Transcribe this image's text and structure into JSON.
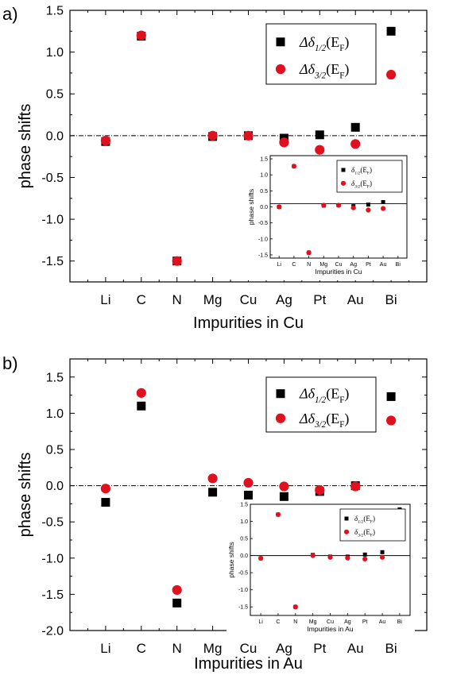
{
  "colors": {
    "series1": "#000000",
    "series2": "#e0101e",
    "zero_line": "#000000"
  },
  "chart_data": [
    {
      "panel_label": "a)",
      "type": "scatter",
      "categories": [
        "Li",
        "C",
        "N",
        "Mg",
        "Cu",
        "Ag",
        "Pt",
        "Au",
        "Bi"
      ],
      "xlabel": "Impurities in Cu",
      "ylabel": "phase shifts",
      "ylim": [
        -1.75,
        1.5
      ],
      "yticks": [
        "1.5",
        "1.0",
        "0.5",
        "0.0",
        "-0.5",
        "-1.0",
        "-1.5"
      ],
      "ytick_values": [
        1.5,
        1.0,
        0.5,
        0.0,
        -0.5,
        -1.0,
        -1.5
      ],
      "legend_position": "top-right",
      "series": [
        {
          "name_main": "Δδ",
          "name_sub": "1/2",
          "name_tail": "(E",
          "name_sub2": "F",
          "name_end": ")",
          "marker": "square",
          "color": "#000000",
          "values": [
            -0.07,
            1.19,
            -1.5,
            -0.01,
            0.0,
            -0.03,
            0.01,
            0.1,
            1.25
          ]
        },
        {
          "name_main": "Δδ",
          "name_sub": "3/2",
          "name_tail": "(E",
          "name_sub2": "F",
          "name_end": ")",
          "marker": "circle",
          "color": "#e0101e",
          "values": [
            -0.06,
            1.2,
            -1.5,
            0.0,
            0.0,
            -0.08,
            -0.17,
            -0.1,
            0.73
          ]
        }
      ],
      "inset": {
        "categories": [
          "Li",
          "C",
          "N",
          "Mg",
          "Cu",
          "Ag",
          "Pt",
          "Au",
          "Bi"
        ],
        "xlabel": "Impurities in Cu",
        "ylabel": "phase shifts",
        "ylim": [
          -1.6,
          1.6
        ],
        "yticks": [
          "1.5",
          "1.0",
          "0.5",
          "0.0",
          "-0.5",
          "-1.0",
          "-1.5"
        ],
        "ytick_values": [
          1.5,
          1.0,
          0.5,
          0.0,
          -0.5,
          -1.0,
          -1.5
        ],
        "zero_level": 0.1,
        "series": [
          {
            "name_main": "δ",
            "name_sub": "1/2",
            "name_tail": "(E",
            "name_sub2": "F",
            "name_end": ")",
            "marker": "square",
            "color": "#000000",
            "values": [
              0.0,
              1.27,
              -1.43,
              0.04,
              0.05,
              0.02,
              0.07,
              0.15,
              1.33
            ]
          },
          {
            "name_main": "δ",
            "name_sub": "3/2",
            "name_tail": "(E",
            "name_sub2": "F",
            "name_end": ")",
            "marker": "circle",
            "color": "#e0101e",
            "values": [
              0.0,
              1.27,
              -1.43,
              0.05,
              0.05,
              -0.03,
              -0.1,
              -0.05,
              0.78
            ]
          }
        ]
      }
    },
    {
      "panel_label": "b)",
      "type": "scatter",
      "categories": [
        "Li",
        "C",
        "N",
        "Mg",
        "Cu",
        "Ag",
        "Pt",
        "Au",
        "Bi"
      ],
      "xlabel": "Impurities in Au",
      "ylabel": "phase shifts",
      "ylim": [
        -2.0,
        1.75
      ],
      "yticks": [
        "1.5",
        "1.0",
        "0.5",
        "0.0",
        "-0.5",
        "-1.0",
        "-1.5",
        "-2.0"
      ],
      "ytick_values": [
        1.5,
        1.0,
        0.5,
        0.0,
        -0.5,
        -1.0,
        -1.5,
        -2.0
      ],
      "legend_position": "top-right",
      "series": [
        {
          "name_main": "Δδ",
          "name_sub": "1/2",
          "name_tail": "(E",
          "name_sub2": "F",
          "name_end": ")",
          "marker": "square",
          "color": "#000000",
          "values": [
            -0.23,
            1.1,
            -1.62,
            -0.09,
            -0.13,
            -0.15,
            -0.08,
            0.0,
            1.23
          ]
        },
        {
          "name_main": "Δδ",
          "name_sub": "3/2",
          "name_tail": "(E",
          "name_sub2": "F",
          "name_end": ")",
          "marker": "circle",
          "color": "#e0101e",
          "values": [
            -0.04,
            1.28,
            -1.44,
            0.1,
            0.04,
            -0.01,
            -0.06,
            -0.01,
            0.9
          ]
        }
      ],
      "inset": {
        "categories": [
          "Li",
          "C",
          "N",
          "Mg",
          "Cu",
          "Ag",
          "Pt",
          "Au",
          "Bi"
        ],
        "xlabel": "Impurities in Au",
        "ylabel": "phase shifts",
        "ylim": [
          -1.75,
          1.5
        ],
        "yticks": [
          "1.5",
          "1.0",
          "0.5",
          "0.0",
          "-0.5",
          "-1.0",
          "-1.5"
        ],
        "ytick_values": [
          1.5,
          1.0,
          0.5,
          0.0,
          -0.5,
          -1.0,
          -1.5
        ],
        "zero_level": 0.0,
        "series": [
          {
            "name_main": "δ",
            "name_sub": "1/2",
            "name_tail": "(E",
            "name_sub2": "F",
            "name_end": ")",
            "marker": "square",
            "color": "#000000",
            "values": [
              -0.08,
              1.2,
              -1.5,
              0.02,
              -0.03,
              -0.03,
              0.03,
              0.1,
              1.35
            ]
          },
          {
            "name_main": "δ",
            "name_sub": "3/2",
            "name_tail": "(E",
            "name_sub2": "F",
            "name_end": ")",
            "marker": "circle",
            "color": "#e0101e",
            "values": [
              -0.08,
              1.2,
              -1.5,
              0.0,
              -0.05,
              -0.07,
              -0.1,
              -0.05,
              0.82
            ]
          }
        ]
      }
    }
  ]
}
